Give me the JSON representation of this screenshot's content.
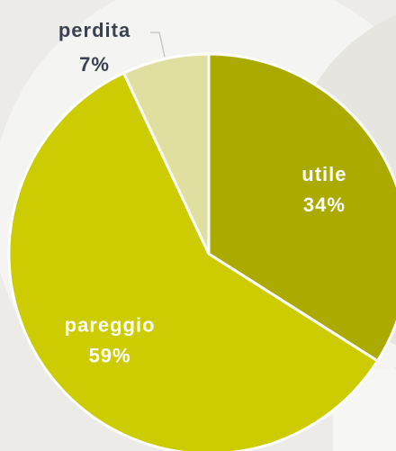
{
  "chart_data": {
    "type": "pie",
    "categories": [
      "utile",
      "pareggio",
      "perdita"
    ],
    "values": [
      34,
      59,
      7
    ],
    "value_labels": [
      "34%",
      "59%",
      "7%"
    ],
    "colors": [
      "#aaaa00",
      "#cccc00",
      "#e0dfa0"
    ],
    "outside_labels": [
      false,
      false,
      true
    ]
  }
}
